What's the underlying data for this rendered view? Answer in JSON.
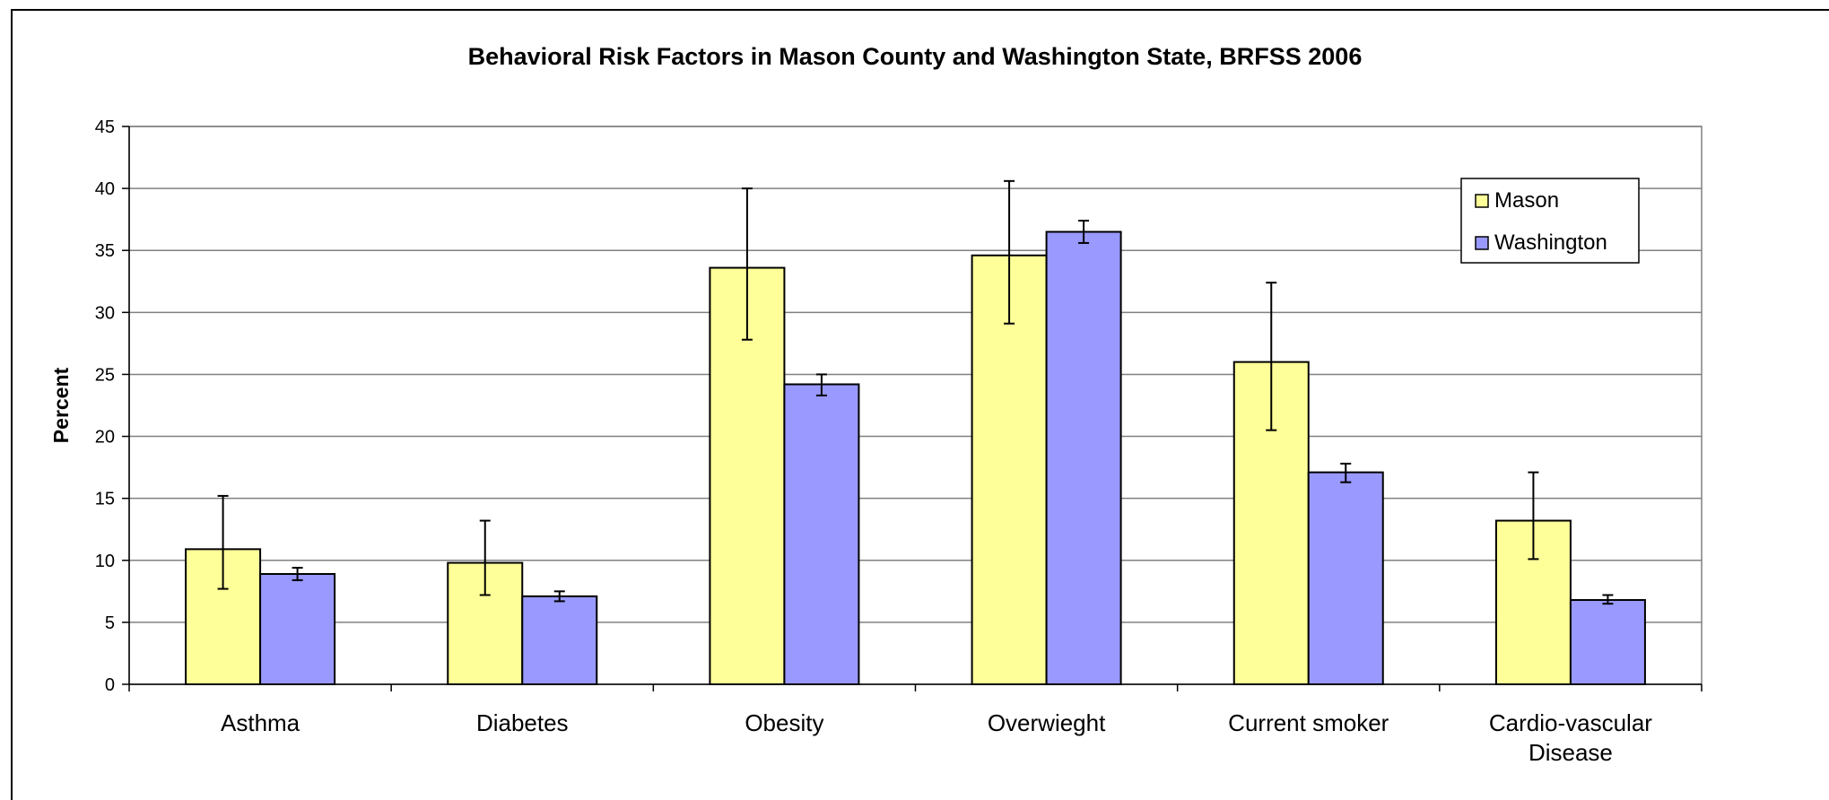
{
  "chart_data": {
    "type": "bar",
    "title": "Behavioral Risk Factors in Mason County and Washington State, BRFSS 2006",
    "xlabel": "",
    "ylabel": "Percent",
    "ylim": [
      0,
      45
    ],
    "yticks": [
      0,
      5,
      10,
      15,
      20,
      25,
      30,
      35,
      40,
      45
    ],
    "grid": true,
    "legend_position": "top-right",
    "categories": [
      [
        "Asthma"
      ],
      [
        "Diabetes"
      ],
      [
        "Obesity"
      ],
      [
        "Overwieght"
      ],
      [
        "Current smoker"
      ],
      [
        "Cardio-vascular",
        "Disease"
      ]
    ],
    "series": [
      {
        "name": "Mason",
        "color": "#FFFF99",
        "values": [
          10.9,
          9.8,
          33.6,
          34.6,
          26.0,
          13.2
        ],
        "err_low": [
          7.7,
          7.2,
          27.8,
          29.1,
          20.5,
          10.1
        ],
        "err_high": [
          15.2,
          13.2,
          40.0,
          40.6,
          32.4,
          17.1
        ]
      },
      {
        "name": "Washington",
        "color": "#9999FF",
        "values": [
          8.9,
          7.1,
          24.2,
          36.5,
          17.1,
          6.8
        ],
        "err_low": [
          8.4,
          6.7,
          23.3,
          35.6,
          16.3,
          6.5
        ],
        "err_high": [
          9.4,
          7.5,
          25.0,
          37.4,
          17.8,
          7.2
        ]
      }
    ]
  }
}
